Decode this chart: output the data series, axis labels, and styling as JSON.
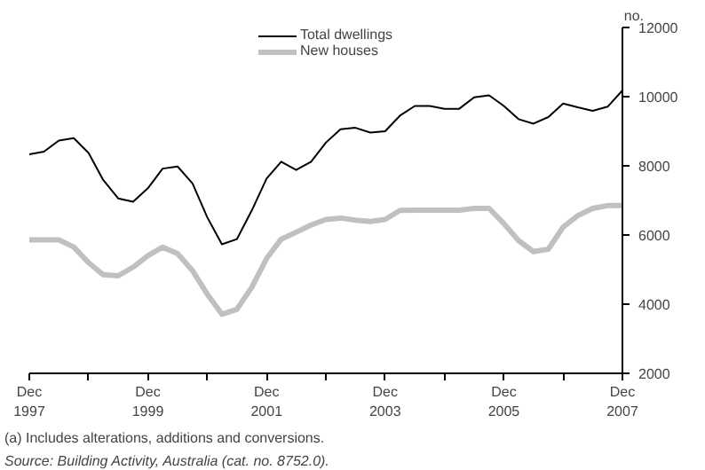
{
  "chart_data": {
    "type": "line",
    "ylabel": "no.",
    "x": [
      "1997-12",
      "1998-03",
      "1998-06",
      "1998-09",
      "1998-12",
      "1999-03",
      "1999-06",
      "1999-09",
      "1999-12",
      "2000-03",
      "2000-06",
      "2000-09",
      "2000-12",
      "2001-03",
      "2001-06",
      "2001-09",
      "2001-12",
      "2002-03",
      "2002-06",
      "2002-09",
      "2002-12",
      "2003-03",
      "2003-06",
      "2003-09",
      "2003-12",
      "2004-03",
      "2004-06",
      "2004-09",
      "2004-12",
      "2005-03",
      "2005-06",
      "2005-09",
      "2005-12",
      "2006-03",
      "2006-06",
      "2006-09",
      "2006-12",
      "2007-03",
      "2007-06",
      "2007-09",
      "2007-12"
    ],
    "series": [
      {
        "name": "Total dwellings",
        "color": "#000000",
        "values": [
          8330,
          8410,
          8730,
          8800,
          8370,
          7590,
          7060,
          6960,
          7350,
          7920,
          7980,
          7490,
          6510,
          5730,
          5880,
          6710,
          7630,
          8120,
          7880,
          8120,
          8670,
          9060,
          9100,
          8960,
          9000,
          9450,
          9730,
          9730,
          9650,
          9650,
          9980,
          10040,
          9730,
          9350,
          9220,
          9410,
          9800,
          9690,
          9590,
          9710,
          10180
        ]
      },
      {
        "name": "New houses",
        "color": "#c0c0c0",
        "values": [
          5860,
          5860,
          5860,
          5650,
          5200,
          4850,
          4820,
          5070,
          5400,
          5650,
          5460,
          4970,
          4290,
          3710,
          3850,
          4490,
          5320,
          5880,
          6080,
          6290,
          6450,
          6490,
          6430,
          6390,
          6450,
          6710,
          6720,
          6720,
          6720,
          6720,
          6770,
          6770,
          6330,
          5840,
          5520,
          5590,
          6230,
          6560,
          6770,
          6850,
          6850
        ]
      }
    ],
    "xlim": [
      "1997-12",
      "2007-12"
    ],
    "xticks": [
      {
        "value": "1997-12",
        "label": "Dec 1997"
      },
      {
        "value": "1998-12",
        "label": null
      },
      {
        "value": "1999-12",
        "label": "Dec 1999"
      },
      {
        "value": "2000-12",
        "label": null
      },
      {
        "value": "2001-12",
        "label": "Dec 2001"
      },
      {
        "value": "2002-12",
        "label": null
      },
      {
        "value": "2003-12",
        "label": "Dec 2003"
      },
      {
        "value": "2004-12",
        "label": null
      },
      {
        "value": "2005-12",
        "label": "Dec 2005"
      },
      {
        "value": "2006-12",
        "label": null
      },
      {
        "value": "2007-12",
        "label": "Dec 2007"
      }
    ],
    "ylim": [
      2000,
      12000
    ],
    "yticks": [
      2000,
      4000,
      6000,
      8000,
      10000,
      12000
    ],
    "grid": false,
    "legend": "top",
    "marker": "none",
    "line_style": "solid",
    "annotations": [
      "(a) Includes alterations, additions and conversions.",
      "Source: Building Activity, Australia (cat. no. 8752.0)."
    ]
  }
}
